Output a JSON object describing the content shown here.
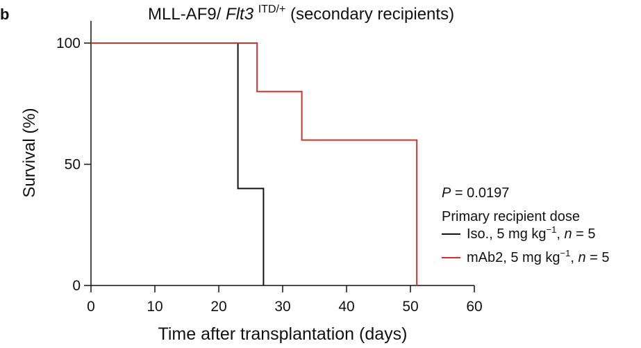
{
  "panel_letter": "b",
  "stats": {
    "p_label": "P",
    "p_value": " = 0.0197"
  },
  "chart_data": {
    "type": "line",
    "title": {
      "prefix": "MLL-AF9/",
      "italic": "Flt3",
      "superscript": "ITD/+",
      "suffix": " (secondary recipients)"
    },
    "xlabel": "Time after transplantation (days)",
    "ylabel": "Survival (%)",
    "xlim": [
      0,
      60
    ],
    "ylim": [
      0,
      100
    ],
    "x_ticks": [
      0,
      10,
      20,
      30,
      40,
      50,
      60
    ],
    "y_ticks": [
      0,
      50,
      100
    ],
    "step": true,
    "legend_title": "Primary recipient dose",
    "legend_position": "right",
    "series": [
      {
        "name": "Iso., 5 mg kg⁻¹, n = 5",
        "legend_main": "Iso., 5 mg kg",
        "legend_sup": "−1",
        "legend_n_label": "n",
        "legend_n_value": " = 5",
        "color": "#111111",
        "x": [
          0,
          23,
          27
        ],
        "y": [
          100,
          40,
          0
        ]
      },
      {
        "name": "mAb2, 5 mg kg⁻¹, n = 5",
        "legend_main": "mAb2, 5 mg kg",
        "legend_sup": "−1",
        "legend_n_label": "n",
        "legend_n_value": " = 5",
        "color": "#d0312d",
        "x": [
          0,
          26,
          33,
          51
        ],
        "y": [
          100,
          80,
          60,
          0
        ]
      }
    ]
  }
}
